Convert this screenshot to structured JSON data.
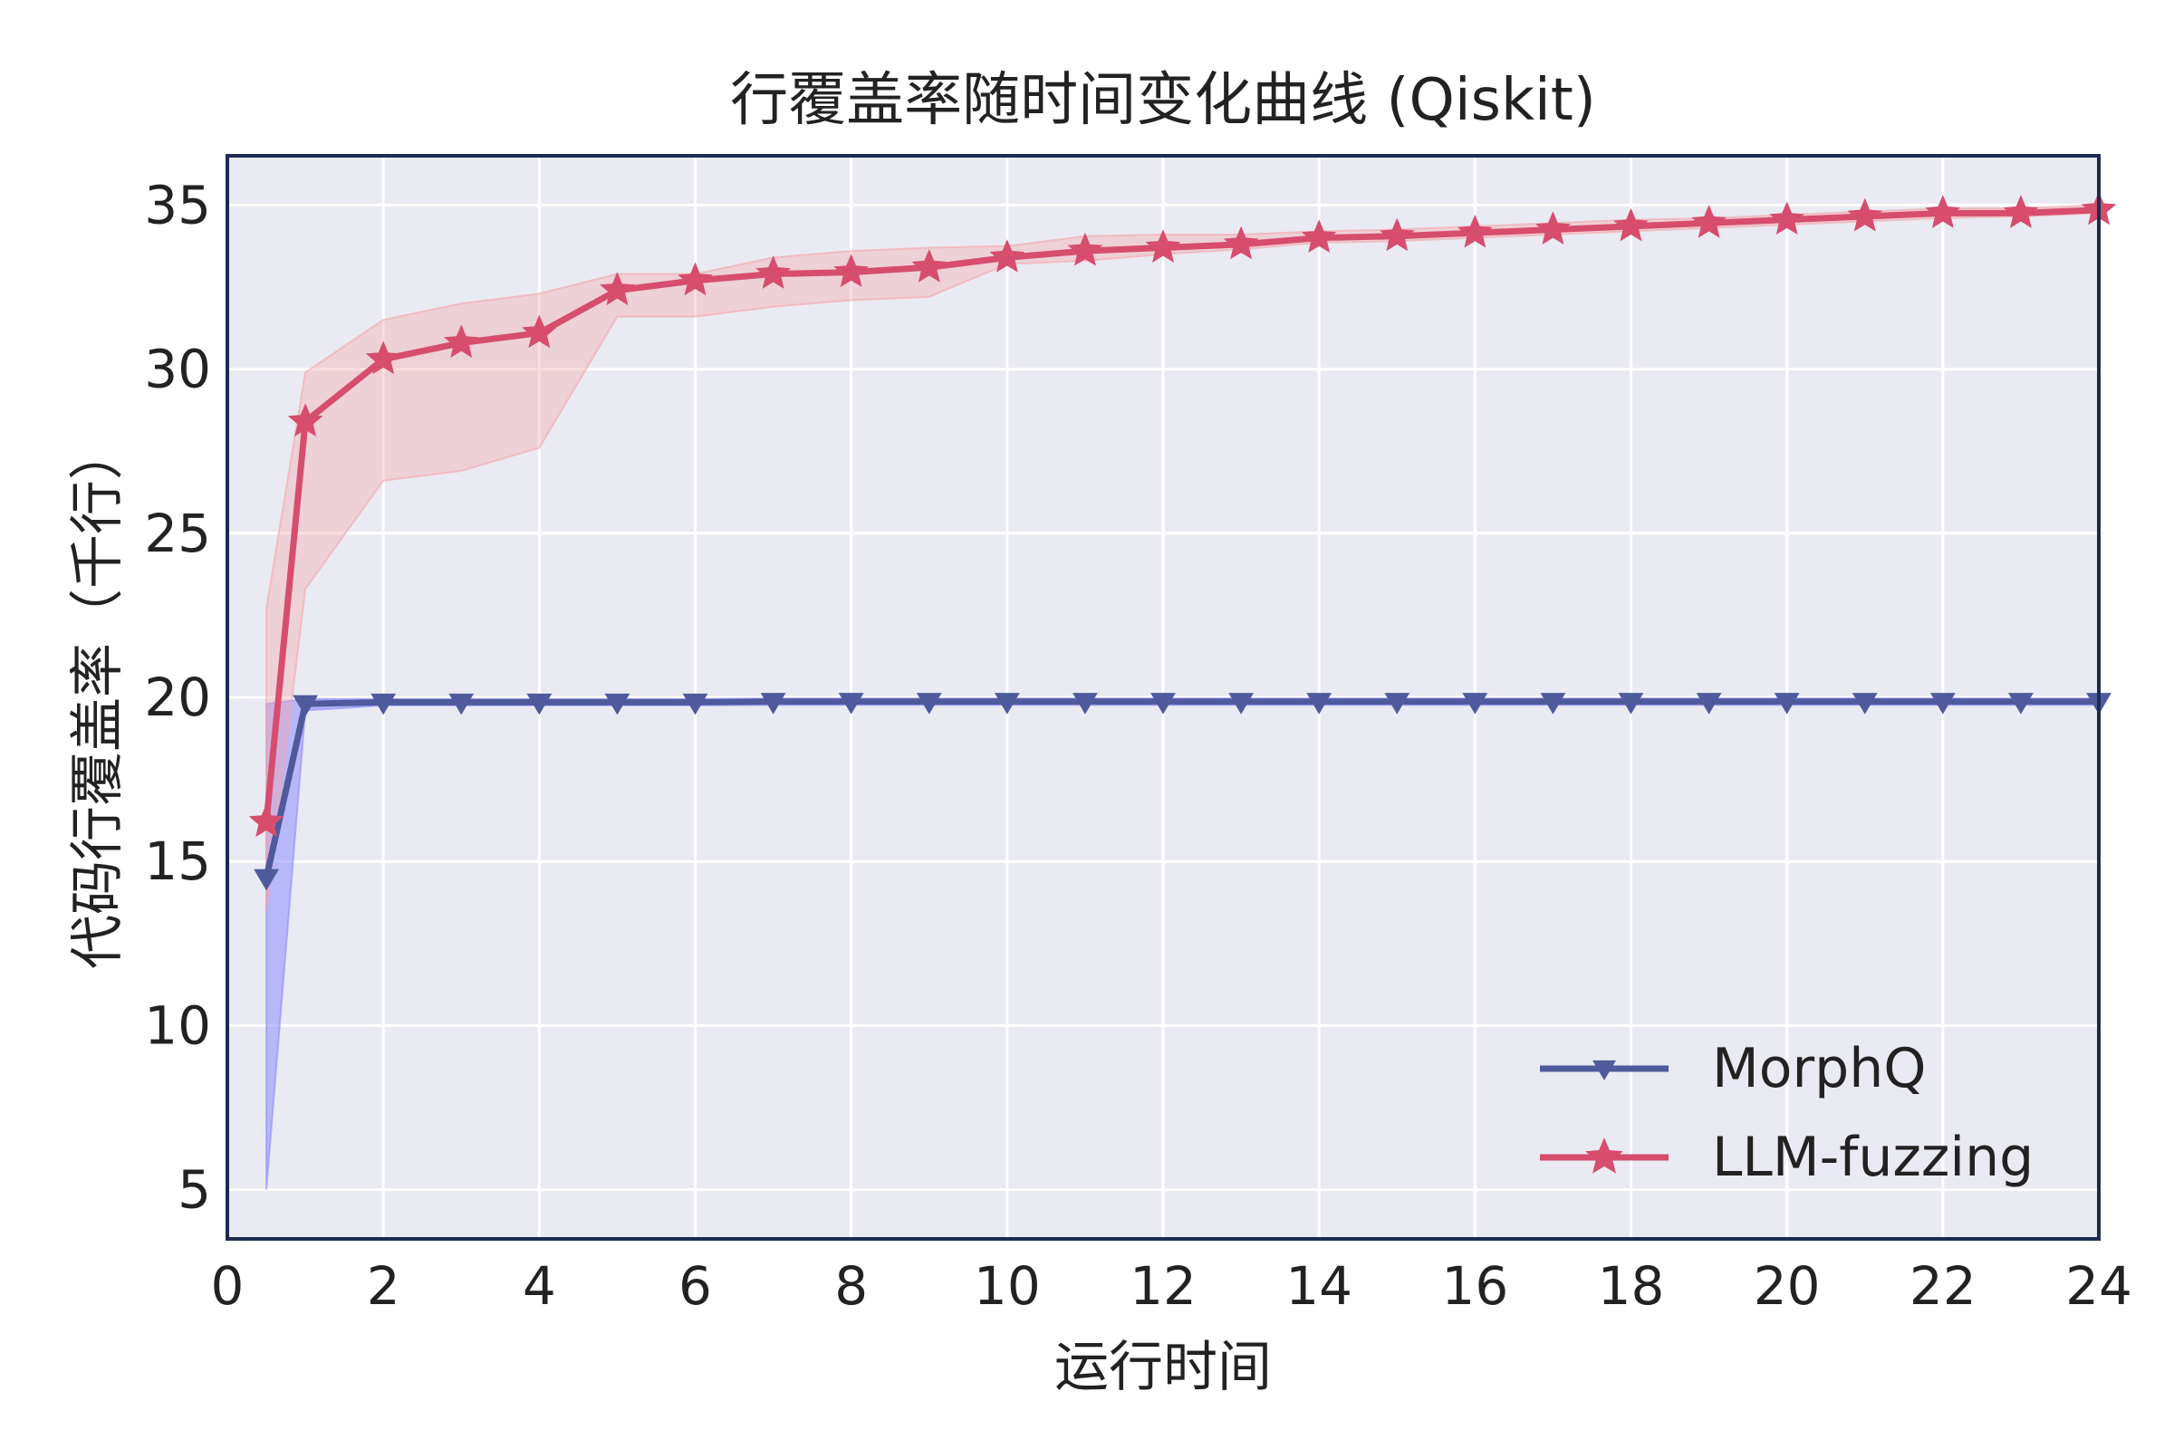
{
  "chart_data": {
    "type": "line",
    "title": "行覆盖率随时间变化曲线 (Qiskit)",
    "xlabel": "运行时间",
    "ylabel": "代码行覆盖率（千行）",
    "xlim": [
      0,
      24
    ],
    "ylim": [
      3.5,
      36.5
    ],
    "xticks": [
      0,
      2,
      4,
      6,
      8,
      10,
      12,
      14,
      16,
      18,
      20,
      22,
      24
    ],
    "yticks": [
      5,
      10,
      15,
      20,
      25,
      30,
      35
    ],
    "grid": true,
    "legend_position": "lower-right",
    "background_color": "#eaeaf2",
    "frame_color": "#1c2b52",
    "series": [
      {
        "name": "MorphQ",
        "color": "#4e5a9c",
        "band_color": "#8c8cff",
        "marker": "triangle-down",
        "x": [
          0.5,
          1,
          2,
          3,
          4,
          5,
          6,
          7,
          8,
          9,
          10,
          11,
          12,
          13,
          14,
          15,
          16,
          17,
          18,
          19,
          20,
          21,
          22,
          23,
          24
        ],
        "values": [
          14.5,
          19.8,
          19.85,
          19.85,
          19.85,
          19.85,
          19.85,
          19.87,
          19.87,
          19.87,
          19.87,
          19.87,
          19.87,
          19.87,
          19.87,
          19.87,
          19.87,
          19.87,
          19.87,
          19.87,
          19.87,
          19.87,
          19.87,
          19.87,
          19.87
        ],
        "lower": [
          5.0,
          19.6,
          19.75,
          19.75,
          19.75,
          19.75,
          19.75,
          19.77,
          19.77,
          19.77,
          19.77,
          19.77,
          19.77,
          19.77,
          19.77,
          19.77,
          19.77,
          19.77,
          19.77,
          19.77,
          19.77,
          19.77,
          19.77,
          19.77,
          19.77
        ],
        "upper": [
          19.8,
          19.95,
          19.95,
          19.95,
          19.95,
          19.95,
          19.95,
          19.97,
          19.97,
          19.97,
          19.97,
          19.97,
          19.97,
          19.97,
          19.97,
          19.97,
          19.97,
          19.97,
          19.97,
          19.97,
          19.97,
          19.97,
          19.97,
          19.97,
          19.97
        ]
      },
      {
        "name": "LLM-fuzzing",
        "color": "#d64d6e",
        "band_color": "#f4a6aa",
        "marker": "star",
        "x": [
          0.5,
          1,
          2,
          3,
          4,
          5,
          6,
          7,
          8,
          9,
          10,
          11,
          12,
          13,
          14,
          15,
          16,
          17,
          18,
          19,
          20,
          21,
          22,
          23,
          24
        ],
        "values": [
          16.2,
          28.4,
          30.3,
          30.8,
          31.1,
          32.4,
          32.7,
          32.9,
          32.95,
          33.1,
          33.4,
          33.6,
          33.7,
          33.8,
          34.0,
          34.05,
          34.15,
          34.25,
          34.35,
          34.45,
          34.55,
          34.65,
          34.75,
          34.75,
          34.85
        ],
        "lower": [
          13.5,
          23.3,
          26.6,
          26.9,
          27.6,
          31.6,
          31.6,
          31.9,
          32.1,
          32.2,
          33.2,
          33.3,
          33.5,
          33.65,
          33.85,
          33.9,
          34.0,
          34.1,
          34.2,
          34.3,
          34.4,
          34.5,
          34.6,
          34.65,
          34.75
        ],
        "upper": [
          22.7,
          29.9,
          31.5,
          32.0,
          32.3,
          32.9,
          32.9,
          33.4,
          33.6,
          33.7,
          33.75,
          34.05,
          34.1,
          34.1,
          34.2,
          34.25,
          34.35,
          34.45,
          34.55,
          34.6,
          34.7,
          34.8,
          34.9,
          34.9,
          35.0
        ]
      }
    ]
  }
}
